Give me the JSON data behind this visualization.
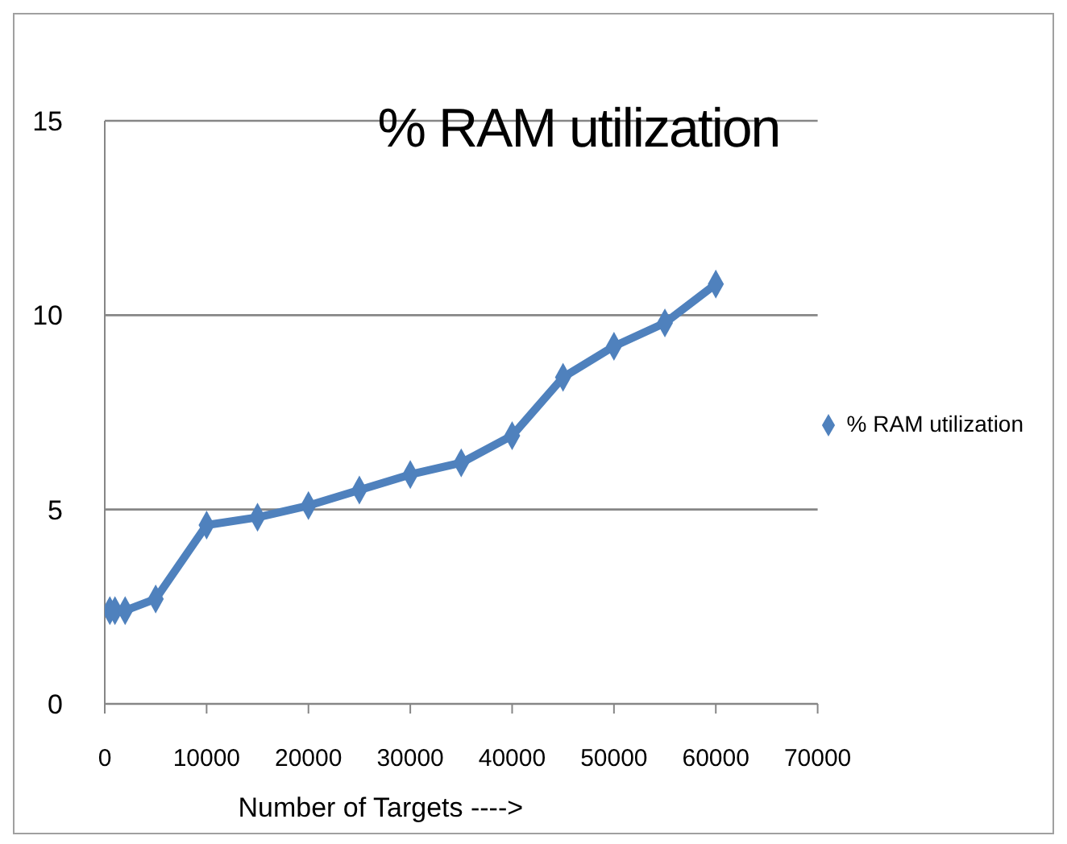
{
  "chart_data": {
    "type": "line",
    "title": "% RAM utilization",
    "xlabel": "Number of Targets ---->",
    "x": [
      500,
      1000,
      2000,
      5000,
      10000,
      15000,
      20000,
      25000,
      30000,
      35000,
      40000,
      45000,
      50000,
      55000,
      60000
    ],
    "series": [
      {
        "name": "% RAM utilization",
        "color": "#4f81bd",
        "values": [
          2.4,
          2.4,
          2.4,
          2.7,
          4.6,
          4.8,
          5.1,
          5.5,
          5.9,
          6.2,
          6.9,
          8.4,
          9.2,
          9.8,
          10.8
        ]
      }
    ],
    "xlim": [
      0,
      70000
    ],
    "xticks": [
      0,
      10000,
      20000,
      30000,
      40000,
      50000,
      60000,
      70000
    ],
    "ylim": [
      0,
      15
    ],
    "yticks": [
      0,
      5,
      10,
      15
    ],
    "grid": "y",
    "legend": "right",
    "marker": "diamond",
    "line_style": "solid"
  }
}
